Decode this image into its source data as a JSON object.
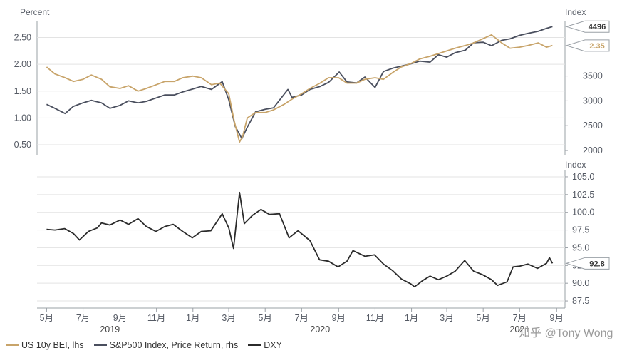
{
  "chart_data": [
    {
      "type": "line",
      "title": "",
      "ylabel_left": "Percent",
      "ylabel_right": "Index",
      "ylim_left": [
        0.3,
        2.8
      ],
      "yticks_left": [
        "0.50",
        "1.00",
        "1.50",
        "2.00",
        "2.50"
      ],
      "ylim_right": [
        1900,
        4600
      ],
      "yticks_right": [
        "2000",
        "2500",
        "3000",
        "3500"
      ],
      "grid": true,
      "series": [
        {
          "name": "US 10y BEI, lhs",
          "axis": "left",
          "color": "#c8a46a",
          "last_value_label": "2.35",
          "points": [
            [
              "2019-05-01",
              1.95
            ],
            [
              "2019-05-15",
              1.82
            ],
            [
              "2019-06-01",
              1.75
            ],
            [
              "2019-06-15",
              1.68
            ],
            [
              "2019-07-01",
              1.72
            ],
            [
              "2019-07-15",
              1.8
            ],
            [
              "2019-08-01",
              1.72
            ],
            [
              "2019-08-15",
              1.58
            ],
            [
              "2019-09-01",
              1.55
            ],
            [
              "2019-09-15",
              1.6
            ],
            [
              "2019-10-01",
              1.5
            ],
            [
              "2019-10-15",
              1.55
            ],
            [
              "2019-11-01",
              1.62
            ],
            [
              "2019-11-15",
              1.68
            ],
            [
              "2019-12-01",
              1.68
            ],
            [
              "2019-12-15",
              1.75
            ],
            [
              "2020-01-01",
              1.78
            ],
            [
              "2020-01-15",
              1.75
            ],
            [
              "2020-02-01",
              1.62
            ],
            [
              "2020-02-15",
              1.65
            ],
            [
              "2020-03-01",
              1.45
            ],
            [
              "2020-03-10",
              0.95
            ],
            [
              "2020-03-19",
              0.55
            ],
            [
              "2020-03-24",
              0.65
            ],
            [
              "2020-04-01",
              1.0
            ],
            [
              "2020-04-15",
              1.1
            ],
            [
              "2020-05-01",
              1.1
            ],
            [
              "2020-05-15",
              1.15
            ],
            [
              "2020-06-01",
              1.25
            ],
            [
              "2020-06-15",
              1.35
            ],
            [
              "2020-07-01",
              1.45
            ],
            [
              "2020-07-15",
              1.55
            ],
            [
              "2020-08-01",
              1.65
            ],
            [
              "2020-08-15",
              1.75
            ],
            [
              "2020-09-01",
              1.75
            ],
            [
              "2020-09-15",
              1.65
            ],
            [
              "2020-10-01",
              1.65
            ],
            [
              "2020-10-15",
              1.72
            ],
            [
              "2020-11-01",
              1.75
            ],
            [
              "2020-11-15",
              1.72
            ],
            [
              "2020-12-01",
              1.85
            ],
            [
              "2020-12-15",
              1.95
            ],
            [
              "2021-01-01",
              2.02
            ],
            [
              "2021-01-15",
              2.1
            ],
            [
              "2021-02-01",
              2.15
            ],
            [
              "2021-02-15",
              2.2
            ],
            [
              "2021-03-01",
              2.25
            ],
            [
              "2021-03-15",
              2.3
            ],
            [
              "2021-04-01",
              2.35
            ],
            [
              "2021-04-15",
              2.4
            ],
            [
              "2021-05-01",
              2.48
            ],
            [
              "2021-05-15",
              2.55
            ],
            [
              "2021-06-01",
              2.4
            ],
            [
              "2021-06-15",
              2.3
            ],
            [
              "2021-07-01",
              2.32
            ],
            [
              "2021-07-15",
              2.35
            ],
            [
              "2021-08-01",
              2.4
            ],
            [
              "2021-08-15",
              2.32
            ],
            [
              "2021-08-25",
              2.35
            ]
          ]
        },
        {
          "name": "S&P500 Index, Price Return, rhs",
          "axis": "right",
          "color": "#4a4f5e",
          "last_value_label": "4496",
          "points": [
            [
              "2019-05-01",
              2930
            ],
            [
              "2019-05-15",
              2850
            ],
            [
              "2019-06-01",
              2745
            ],
            [
              "2019-06-15",
              2890
            ],
            [
              "2019-07-01",
              2960
            ],
            [
              "2019-07-15",
              3010
            ],
            [
              "2019-08-01",
              2960
            ],
            [
              "2019-08-15",
              2850
            ],
            [
              "2019-09-01",
              2910
            ],
            [
              "2019-09-15",
              3000
            ],
            [
              "2019-10-01",
              2960
            ],
            [
              "2019-10-15",
              2990
            ],
            [
              "2019-11-01",
              3060
            ],
            [
              "2019-11-15",
              3120
            ],
            [
              "2019-12-01",
              3120
            ],
            [
              "2019-12-15",
              3180
            ],
            [
              "2020-01-01",
              3240
            ],
            [
              "2020-01-15",
              3290
            ],
            [
              "2020-02-01",
              3230
            ],
            [
              "2020-02-19",
              3386
            ],
            [
              "2020-03-01",
              3020
            ],
            [
              "2020-03-12",
              2480
            ],
            [
              "2020-03-23",
              2240
            ],
            [
              "2020-04-01",
              2470
            ],
            [
              "2020-04-15",
              2780
            ],
            [
              "2020-05-01",
              2830
            ],
            [
              "2020-05-15",
              2860
            ],
            [
              "2020-06-08",
              3230
            ],
            [
              "2020-06-15",
              3070
            ],
            [
              "2020-07-01",
              3120
            ],
            [
              "2020-07-15",
              3230
            ],
            [
              "2020-08-01",
              3290
            ],
            [
              "2020-08-15",
              3370
            ],
            [
              "2020-09-02",
              3580
            ],
            [
              "2020-09-15",
              3380
            ],
            [
              "2020-10-01",
              3360
            ],
            [
              "2020-10-15",
              3480
            ],
            [
              "2020-11-01",
              3270
            ],
            [
              "2020-11-15",
              3590
            ],
            [
              "2020-12-01",
              3660
            ],
            [
              "2020-12-15",
              3700
            ],
            [
              "2021-01-01",
              3750
            ],
            [
              "2021-01-15",
              3800
            ],
            [
              "2021-02-01",
              3780
            ],
            [
              "2021-02-15",
              3930
            ],
            [
              "2021-03-01",
              3880
            ],
            [
              "2021-03-15",
              3970
            ],
            [
              "2021-04-01",
              4020
            ],
            [
              "2021-04-15",
              4170
            ],
            [
              "2021-05-01",
              4180
            ],
            [
              "2021-05-15",
              4110
            ],
            [
              "2021-06-01",
              4220
            ],
            [
              "2021-06-15",
              4250
            ],
            [
              "2021-07-01",
              4320
            ],
            [
              "2021-07-15",
              4360
            ],
            [
              "2021-08-01",
              4400
            ],
            [
              "2021-08-15",
              4460
            ],
            [
              "2021-08-25",
              4496
            ]
          ]
        }
      ]
    },
    {
      "type": "line",
      "title": "",
      "ylabel": "Index",
      "ylim": [
        86.5,
        106
      ],
      "yticks": [
        "87.5",
        "90.0",
        "92.5",
        "95.0",
        "97.5",
        "100.0",
        "102.5",
        "105.0"
      ],
      "grid": true,
      "x_tick_labels": [
        "5月",
        "7月",
        "9月",
        "11月",
        "1月",
        "3月",
        "5月",
        "7月",
        "9月",
        "11月",
        "1月",
        "3月",
        "5月",
        "7月",
        "9月"
      ],
      "year_labels": [
        "2019",
        "2020",
        "2021"
      ],
      "series": [
        {
          "name": "DXY",
          "color": "#2b2b2b",
          "last_value_label": "92.8",
          "points": [
            [
              "2019-05-01",
              97.6
            ],
            [
              "2019-05-15",
              97.5
            ],
            [
              "2019-05-31",
              97.7
            ],
            [
              "2019-06-15",
              97.0
            ],
            [
              "2019-06-25",
              96.1
            ],
            [
              "2019-07-10",
              97.3
            ],
            [
              "2019-07-25",
              97.8
            ],
            [
              "2019-08-01",
              98.5
            ],
            [
              "2019-08-15",
              98.2
            ],
            [
              "2019-09-01",
              98.9
            ],
            [
              "2019-09-15",
              98.3
            ],
            [
              "2019-10-01",
              99.1
            ],
            [
              "2019-10-15",
              98.0
            ],
            [
              "2019-10-31",
              97.3
            ],
            [
              "2019-11-15",
              98.0
            ],
            [
              "2019-11-29",
              98.3
            ],
            [
              "2019-12-15",
              97.3
            ],
            [
              "2019-12-31",
              96.4
            ],
            [
              "2020-01-15",
              97.3
            ],
            [
              "2020-01-31",
              97.4
            ],
            [
              "2020-02-19",
              99.8
            ],
            [
              "2020-03-01",
              97.8
            ],
            [
              "2020-03-09",
              94.9
            ],
            [
              "2020-03-19",
              102.8
            ],
            [
              "2020-03-27",
              98.4
            ],
            [
              "2020-04-10",
              99.6
            ],
            [
              "2020-04-24",
              100.4
            ],
            [
              "2020-05-08",
              99.7
            ],
            [
              "2020-05-25",
              99.8
            ],
            [
              "2020-06-10",
              96.4
            ],
            [
              "2020-06-25",
              97.4
            ],
            [
              "2020-07-15",
              96.0
            ],
            [
              "2020-07-31",
              93.3
            ],
            [
              "2020-08-15",
              93.1
            ],
            [
              "2020-08-31",
              92.3
            ],
            [
              "2020-09-15",
              93.1
            ],
            [
              "2020-09-25",
              94.6
            ],
            [
              "2020-10-15",
              93.8
            ],
            [
              "2020-10-31",
              94.0
            ],
            [
              "2020-11-15",
              92.7
            ],
            [
              "2020-11-30",
              91.8
            ],
            [
              "2020-12-15",
              90.6
            ],
            [
              "2020-12-31",
              89.9
            ],
            [
              "2021-01-06",
              89.5
            ],
            [
              "2021-01-20",
              90.4
            ],
            [
              "2021-02-01",
              91.0
            ],
            [
              "2021-02-15",
              90.5
            ],
            [
              "2021-03-01",
              91.0
            ],
            [
              "2021-03-15",
              91.7
            ],
            [
              "2021-03-31",
              93.2
            ],
            [
              "2021-04-15",
              91.7
            ],
            [
              "2021-04-30",
              91.2
            ],
            [
              "2021-05-15",
              90.5
            ],
            [
              "2021-05-25",
              89.7
            ],
            [
              "2021-06-10",
              90.2
            ],
            [
              "2021-06-20",
              92.3
            ],
            [
              "2021-07-01",
              92.4
            ],
            [
              "2021-07-15",
              92.7
            ],
            [
              "2021-07-31",
              92.1
            ],
            [
              "2021-08-15",
              92.8
            ],
            [
              "2021-08-20",
              93.6
            ],
            [
              "2021-08-25",
              92.8
            ]
          ]
        }
      ]
    }
  ],
  "legend": [
    "US 10y BEI, lhs",
    "S&P500 Index, Price Return, rhs",
    "DXY"
  ],
  "watermark": "知乎 @Tony Wong"
}
